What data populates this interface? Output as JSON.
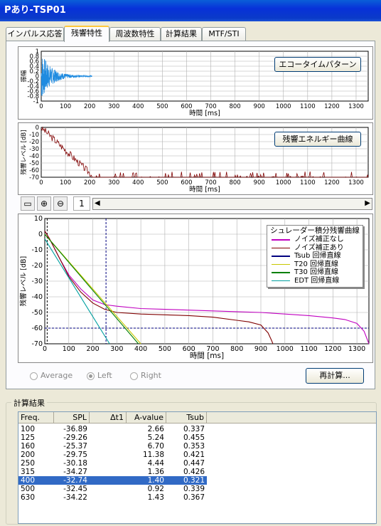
{
  "window": {
    "title": "Pあり-TSP01"
  },
  "tabs": [
    "インパルス応答",
    "残響特性",
    "周波数特性",
    "計算結果",
    "MTF/STI"
  ],
  "echo": {
    "title_button": "エコータイムパターン",
    "ylabel": "振幅",
    "xlabel": "時間 [ms]",
    "yticks": [
      "1",
      "0.8",
      "0.6",
      "0.4",
      "0.2",
      "0",
      "-0.2",
      "-0.4",
      "-0.6",
      "-0.8",
      "-1"
    ],
    "xticks": [
      "0",
      "100",
      "200",
      "300",
      "400",
      "500",
      "600",
      "700",
      "800",
      "900",
      "1000",
      "1100",
      "1200",
      "1300"
    ]
  },
  "energy": {
    "title_button": "残響エネルギー曲線",
    "ylabel": "残響レベル [dB]",
    "xlabel": "時間 [ms]",
    "yticks": [
      "0",
      "-10",
      "-20",
      "-30",
      "-40",
      "-50",
      "-60",
      "-70"
    ],
    "xticks": [
      "0",
      "100",
      "200",
      "300",
      "400",
      "500",
      "600",
      "700",
      "800",
      "900",
      "1000",
      "1100",
      "1200",
      "1300"
    ]
  },
  "toolbar": {
    "page": "1"
  },
  "chart_data": {
    "type": "line",
    "title": "シュレーダー積分残響曲線",
    "xlabel": "時間 [ms]",
    "ylabel": "残響レベル [dB]",
    "xlim": [
      0,
      1350
    ],
    "ylim": [
      -70,
      10
    ],
    "xticks": [
      "0",
      "100",
      "200",
      "300",
      "400",
      "500",
      "600",
      "700",
      "800",
      "900",
      "1000",
      "1100",
      "1200",
      "1300"
    ],
    "yticks": [
      "10",
      "0",
      "-10",
      "-20",
      "-30",
      "-40",
      "-50",
      "-60",
      "-70"
    ],
    "legend_position": "top-right",
    "series": [
      {
        "name": "ノイズ補正なし",
        "color": "#c000c0",
        "x": [
          0,
          20,
          60,
          100,
          150,
          200,
          250,
          300,
          400,
          500,
          600,
          700,
          800,
          900,
          1000,
          1100,
          1200,
          1250,
          1300,
          1330,
          1350
        ],
        "y": [
          2,
          -3,
          -15,
          -26,
          -35,
          -42,
          -45,
          -46,
          -47.5,
          -48,
          -48.5,
          -49,
          -49.5,
          -50,
          -51,
          -52,
          -53.5,
          -54.5,
          -57,
          -62,
          -70
        ]
      },
      {
        "name": "ノイズ補正あり",
        "color": "#800000",
        "x": [
          0,
          20,
          60,
          100,
          150,
          200,
          250,
          300,
          400,
          500,
          600,
          700,
          800,
          850,
          900,
          930,
          945,
          950
        ],
        "y": [
          2,
          -3,
          -15,
          -27,
          -37,
          -44,
          -48,
          -50,
          -51,
          -51.5,
          -52,
          -53,
          -55,
          -56,
          -58,
          -63,
          -68,
          -70
        ]
      },
      {
        "name": "Tsub 回帰直線",
        "color": "#000080",
        "x": [],
        "y": []
      },
      {
        "name": "T20 回帰直線",
        "color": "#c8c800",
        "x": [
          0,
          400
        ],
        "y": [
          0,
          -70
        ]
      },
      {
        "name": "T30 回帰直線",
        "color": "#008000",
        "x": [
          0,
          390
        ],
        "y": [
          0,
          -70
        ]
      },
      {
        "name": "EDT 回帰直線",
        "color": "#00a0a0",
        "x": [
          0,
          270
        ],
        "y": [
          -3,
          -70
        ]
      }
    ],
    "annotations": {
      "noise_level_db": -60,
      "marker_x_ms": 255,
      "zero_x_ms": 10
    }
  },
  "schroeder": {
    "title": "シュレーダー積分残響曲線"
  },
  "options": {
    "average": "Average",
    "left": "Left",
    "right": "Right",
    "recalc": "再計算..."
  },
  "results": {
    "group_label": "計算結果",
    "columns": [
      "Freq.",
      "SPL",
      "Δt1",
      "A-value",
      "Tsub"
    ],
    "rows": [
      [
        "100",
        "-36.89",
        "",
        "2.66",
        "0.337"
      ],
      [
        "125",
        "-29.26",
        "",
        "5.24",
        "0.455"
      ],
      [
        "160",
        "-25.37",
        "",
        "6.70",
        "0.353"
      ],
      [
        "200",
        "-29.75",
        "",
        "11.38",
        "0.421"
      ],
      [
        "250",
        "-30.18",
        "",
        "4.44",
        "0.447"
      ],
      [
        "315",
        "-34.27",
        "",
        "1.36",
        "0.426"
      ],
      [
        "400",
        "-32.74",
        "",
        "1.40",
        "0.321"
      ],
      [
        "500",
        "-32.45",
        "",
        "0.92",
        "0.339"
      ],
      [
        "630",
        "-34.22",
        "",
        "1.43",
        "0.367"
      ]
    ],
    "selected_row": 6
  }
}
